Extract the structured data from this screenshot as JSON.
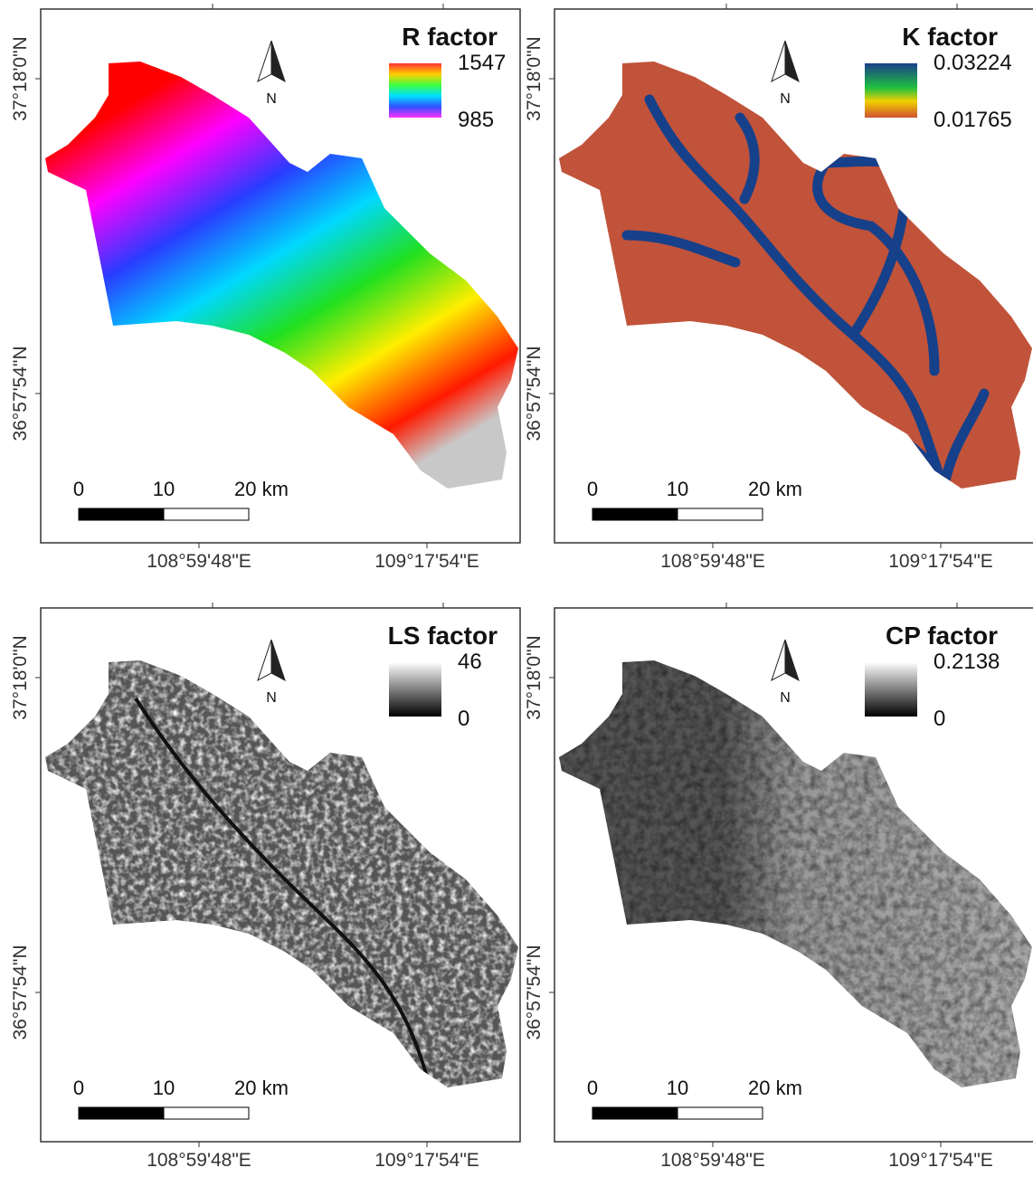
{
  "panels": [
    {
      "title": "R factor",
      "legend": {
        "max": 1547,
        "min": 985
      }
    },
    {
      "title": "K factor",
      "legend": {
        "max": 0.03224,
        "min": 0.01765
      }
    },
    {
      "title": "LS factor",
      "legend": {
        "max": 46,
        "min": 0
      }
    },
    {
      "title": "CP factor",
      "legend": {
        "max": 0.2138,
        "min": 0
      }
    }
  ],
  "north_label": "N",
  "scale_bar": {
    "labels": [
      0,
      10,
      "20 km"
    ]
  },
  "latitude_labels": [
    "37°18'0\"N",
    "36°57'54\"N"
  ],
  "longitude_labels": [
    "108°59'48\"E",
    "109°17'54\"E"
  ]
}
